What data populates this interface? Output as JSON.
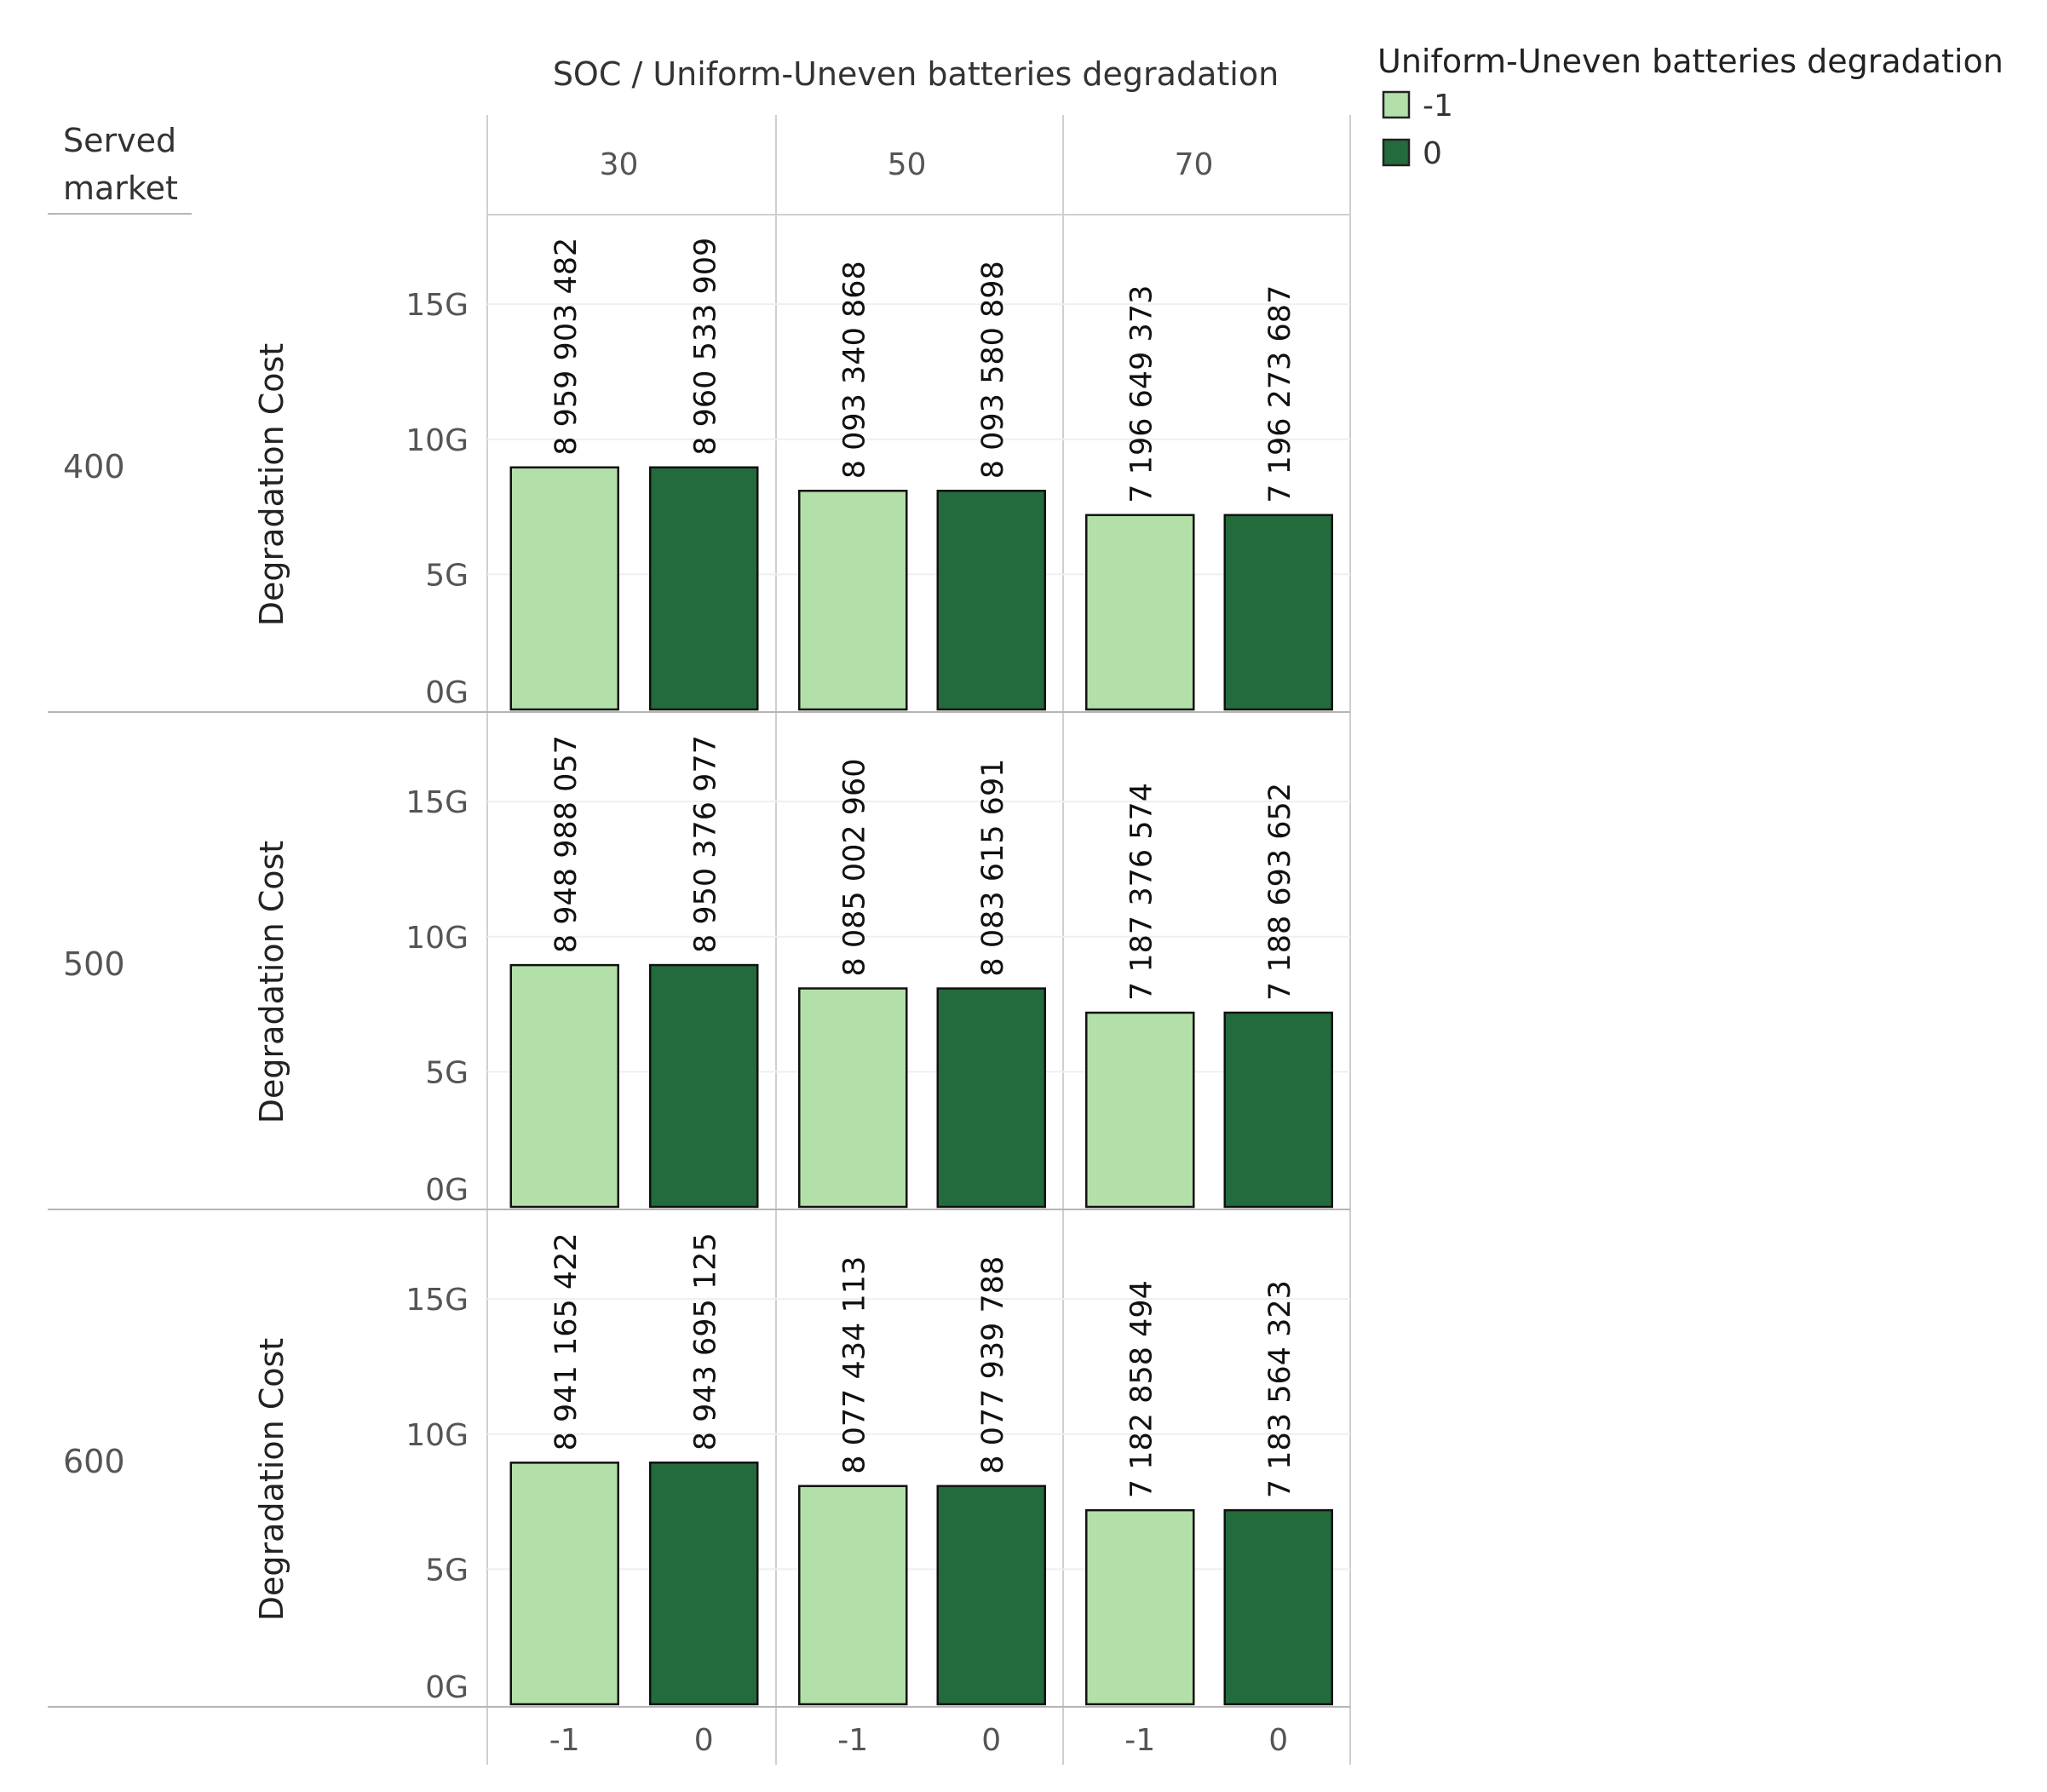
{
  "chart_data": {
    "type": "bar",
    "title": "SOC  /  Uniform-Uneven batteries degradation",
    "row_header": [
      "Served",
      "market"
    ],
    "ylabel": "Degradation Cost",
    "ylim": [
      0,
      18000000000
    ],
    "yticks": [
      0,
      5000000000,
      10000000000,
      15000000000
    ],
    "ytick_labels": [
      "0G",
      "5G",
      "10G",
      "15G"
    ],
    "soc_levels": [
      "30",
      "50",
      "70"
    ],
    "categories": [
      "-1",
      "0"
    ],
    "legend": {
      "title": "Uniform-Uneven batteries degradation",
      "items": [
        {
          "label": "-1",
          "color": "#b3dfa8"
        },
        {
          "label": "0",
          "color": "#236b3c"
        }
      ]
    },
    "rows": [
      {
        "market": "400",
        "values": [
          [
            8959903482,
            8960533909
          ],
          [
            8093340868,
            8093580898
          ],
          [
            7196649373,
            7196273687
          ]
        ],
        "labels": [
          [
            "8 959 903 482",
            "8 960 533 909"
          ],
          [
            "8 093 340 868",
            "8 093 580 898"
          ],
          [
            "7 196 649 373",
            "7 196 273 687"
          ]
        ]
      },
      {
        "market": "500",
        "values": [
          [
            8948988057,
            8950376977
          ],
          [
            8085002960,
            8083615691
          ],
          [
            7187376574,
            7188693652
          ]
        ],
        "labels": [
          [
            "8 948 988 057",
            "8 950 376 977"
          ],
          [
            "8 085 002 960",
            "8 083 615 691"
          ],
          [
            "7 187 376 574",
            "7 188 693 652"
          ]
        ]
      },
      {
        "market": "600",
        "values": [
          [
            8941165422,
            8943695125
          ],
          [
            8077434113,
            8077939788
          ],
          [
            7182858494,
            7183564323
          ]
        ],
        "labels": [
          [
            "8 941 165 422",
            "8 943 695 125"
          ],
          [
            "8 077 434 113",
            "8 077 939 788"
          ],
          [
            "7 182 858 494",
            "7 183 564 323"
          ]
        ]
      }
    ]
  }
}
